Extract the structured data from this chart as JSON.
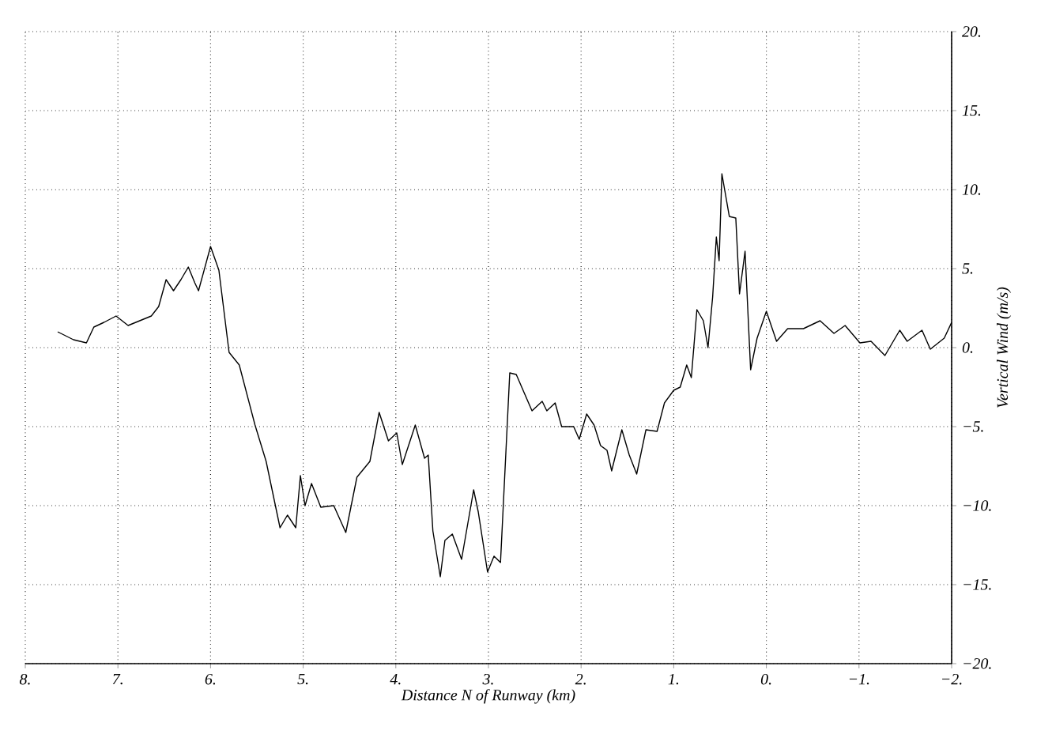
{
  "chart_data": {
    "type": "line",
    "xlabel": "Distance N of Runway (km)",
    "ylabel": "Vertical Wind (m/s)",
    "xlim": [
      8,
      -2
    ],
    "ylim": [
      -20,
      20
    ],
    "xticks": [
      {
        "value": 8,
        "label": "8."
      },
      {
        "value": 7,
        "label": "7."
      },
      {
        "value": 6,
        "label": "6."
      },
      {
        "value": 5,
        "label": "5."
      },
      {
        "value": 4,
        "label": "4."
      },
      {
        "value": 3,
        "label": "3."
      },
      {
        "value": 2,
        "label": "2."
      },
      {
        "value": 1,
        "label": "1."
      },
      {
        "value": 0,
        "label": "0."
      },
      {
        "value": -1,
        "label": "−1."
      },
      {
        "value": -2,
        "label": "−2."
      }
    ],
    "yticks": [
      {
        "value": -20,
        "label": "−20."
      },
      {
        "value": -15,
        "label": "−15."
      },
      {
        "value": -10,
        "label": "−10."
      },
      {
        "value": -5,
        "label": "−5."
      },
      {
        "value": 0,
        "label": "0."
      },
      {
        "value": 5,
        "label": "5."
      },
      {
        "value": 10,
        "label": "10."
      },
      {
        "value": 15,
        "label": "15."
      },
      {
        "value": 20,
        "label": "20."
      }
    ],
    "grid": true,
    "marker": "none",
    "line_style": "solid",
    "series": [
      {
        "color": "#000000",
        "x": [
          7.65,
          7.48,
          7.34,
          7.26,
          7.15,
          7.02,
          6.89,
          6.64,
          6.56,
          6.48,
          6.4,
          6.32,
          6.24,
          6.17,
          6.13,
          6.0,
          5.91,
          5.8,
          5.69,
          5.52,
          5.4,
          5.25,
          5.17,
          5.08,
          5.03,
          4.98,
          4.91,
          4.81,
          4.67,
          4.54,
          4.42,
          4.28,
          4.18,
          4.08,
          3.99,
          3.93,
          3.79,
          3.69,
          3.65,
          3.6,
          3.52,
          3.47,
          3.39,
          3.29,
          3.16,
          3.11,
          3.01,
          2.94,
          2.87,
          2.77,
          2.7,
          2.53,
          2.42,
          2.37,
          2.28,
          2.21,
          2.08,
          2.02,
          1.94,
          1.86,
          1.79,
          1.72,
          1.67,
          1.56,
          1.48,
          1.4,
          1.3,
          1.18,
          1.1,
          1.0,
          0.93,
          0.86,
          0.81,
          0.75,
          0.68,
          0.63,
          0.58,
          0.54,
          0.51,
          0.48,
          0.4,
          0.33,
          0.29,
          0.23,
          0.17,
          0.1,
          0.0,
          -0.11,
          -0.23,
          -0.4,
          -0.58,
          -0.73,
          -0.85,
          -1.01,
          -1.13,
          -1.28,
          -1.44,
          -1.52,
          -1.68,
          -1.77,
          -1.92,
          -2.0
        ],
        "values": [
          1.0,
          0.5,
          0.3,
          1.3,
          1.6,
          2.0,
          1.4,
          2.0,
          2.6,
          4.3,
          3.6,
          4.3,
          5.1,
          4.1,
          3.6,
          6.4,
          4.9,
          -0.3,
          -1.1,
          -4.9,
          -7.2,
          -11.4,
          -10.6,
          -11.4,
          -8.1,
          -10.0,
          -8.6,
          -10.1,
          -10.0,
          -11.7,
          -8.2,
          -7.2,
          -4.1,
          -5.9,
          -5.4,
          -7.4,
          -4.9,
          -7.0,
          -6.8,
          -11.6,
          -14.5,
          -12.2,
          -11.8,
          -13.4,
          -9.0,
          -10.4,
          -14.2,
          -13.2,
          -13.6,
          -1.6,
          -1.7,
          -4.0,
          -3.4,
          -4.0,
          -3.5,
          -5.0,
          -5.0,
          -5.8,
          -4.2,
          -4.9,
          -6.2,
          -6.5,
          -7.8,
          -5.2,
          -6.8,
          -8.0,
          -5.2,
          -5.3,
          -3.5,
          -2.7,
          -2.5,
          -1.1,
          -1.9,
          2.4,
          1.7,
          0.0,
          3.2,
          7.0,
          5.5,
          11.0,
          8.3,
          8.2,
          3.4,
          6.1,
          -1.4,
          0.6,
          2.3,
          0.4,
          1.2,
          1.2,
          1.7,
          0.9,
          1.4,
          0.3,
          0.4,
          -0.5,
          1.1,
          0.4,
          1.1,
          -0.1,
          0.6,
          1.6
        ]
      }
    ]
  }
}
